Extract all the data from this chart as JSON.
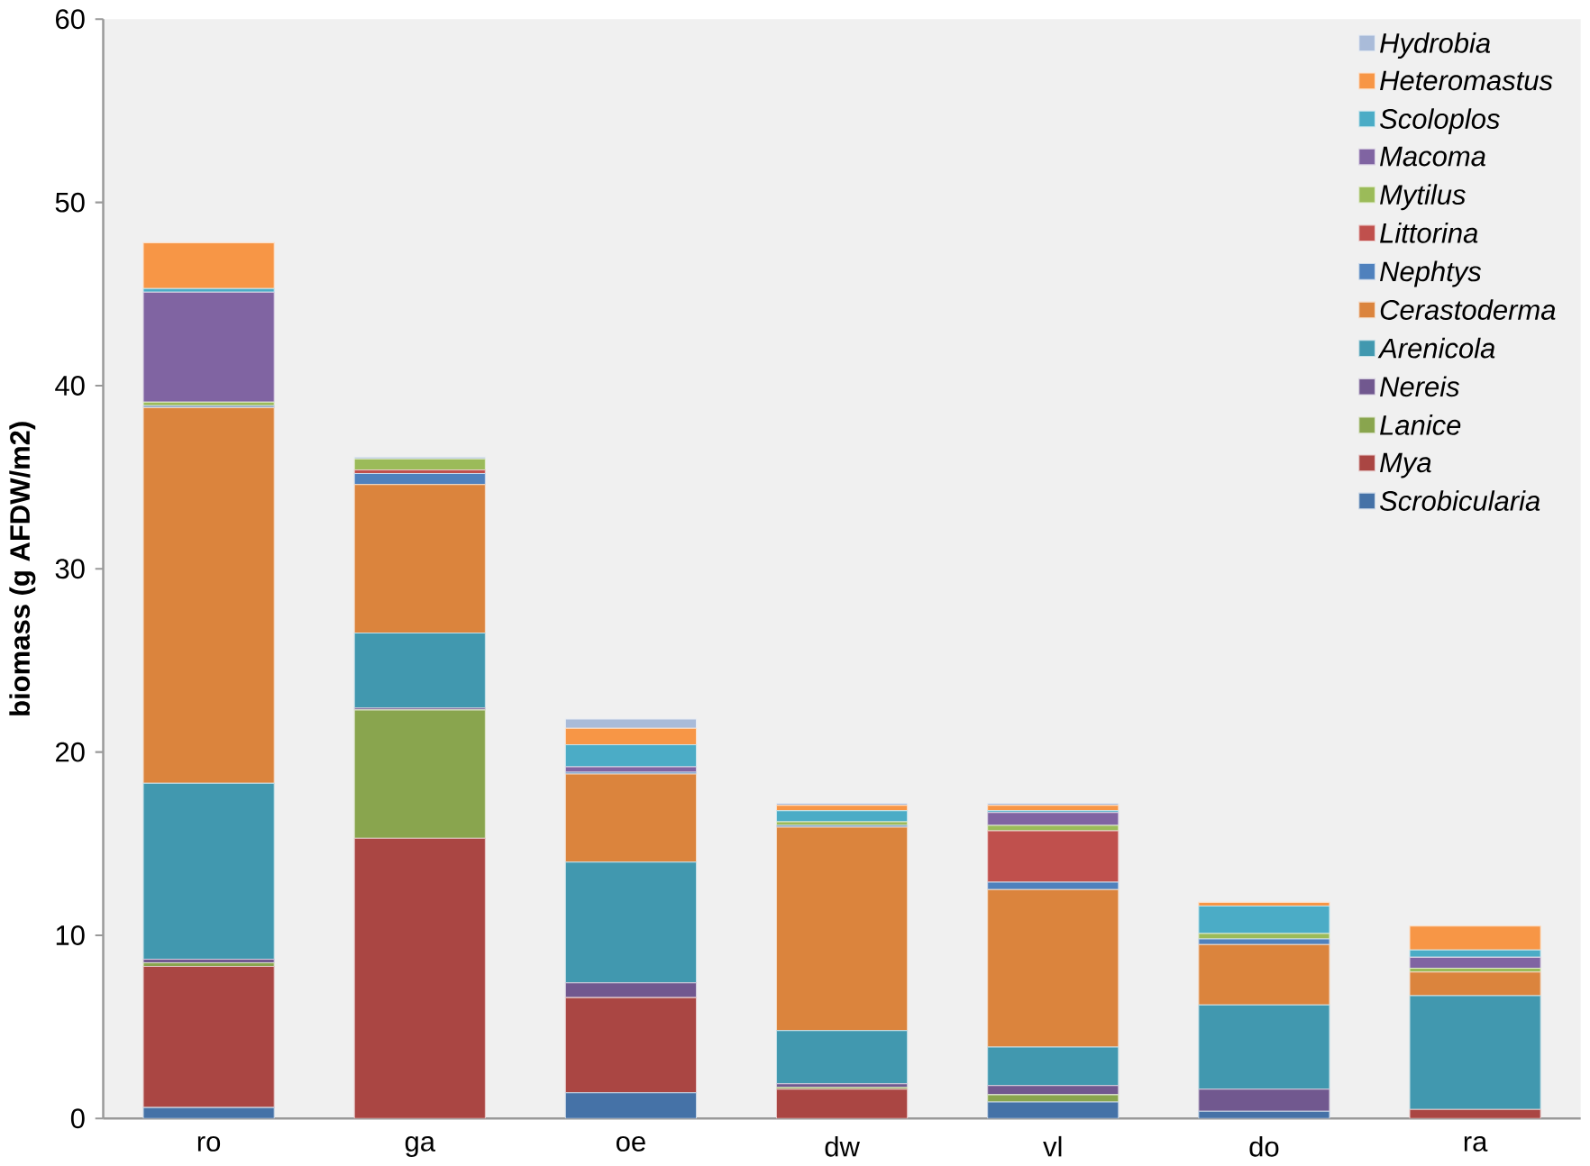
{
  "chart_data": {
    "type": "bar",
    "stacked": true,
    "ylabel": "biomass (g AFDW/m2)",
    "categories": [
      "ro",
      "ga",
      "oe",
      "dw",
      "vl",
      "do",
      "ra"
    ],
    "ylim": [
      0,
      60
    ],
    "yticks": [
      0,
      10,
      20,
      30,
      40,
      50,
      60
    ],
    "grid": false,
    "legend": "top right",
    "series": [
      {
        "name": "Scrobicularia",
        "color": "#4572a7",
        "values": [
          0.6,
          0,
          1.4,
          0,
          0.9,
          0.4,
          0
        ]
      },
      {
        "name": "Mya",
        "color": "#aa4643",
        "values": [
          7.7,
          15.3,
          5.2,
          1.6,
          0,
          0,
          0.5
        ]
      },
      {
        "name": "Lanice",
        "color": "#89a54e",
        "values": [
          0.2,
          7.0,
          0,
          0.1,
          0.4,
          0,
          0
        ]
      },
      {
        "name": "Nereis",
        "color": "#71588f",
        "values": [
          0.2,
          0.1,
          0.8,
          0.2,
          0.5,
          1.2,
          0
        ]
      },
      {
        "name": "Arenicola",
        "color": "#4198af",
        "values": [
          9.6,
          4.1,
          6.6,
          2.9,
          2.1,
          4.6,
          6.2
        ]
      },
      {
        "name": "Cerastoderma",
        "color": "#db843d",
        "values": [
          20.5,
          8.1,
          4.8,
          11.1,
          8.6,
          3.3,
          1.3
        ]
      },
      {
        "name": "Nephtys",
        "color": "#4f81bd",
        "values": [
          0.1,
          0.6,
          0.1,
          0.1,
          0.4,
          0.3,
          0
        ]
      },
      {
        "name": "Littorina",
        "color": "#c0504d",
        "values": [
          0,
          0.2,
          0,
          0,
          2.8,
          0,
          0
        ]
      },
      {
        "name": "Mytilus",
        "color": "#9bbb59",
        "values": [
          0.2,
          0.6,
          0,
          0.2,
          0.3,
          0.3,
          0.2
        ]
      },
      {
        "name": "Macoma",
        "color": "#8064a2",
        "values": [
          6.0,
          0,
          0.3,
          0,
          0.7,
          0,
          0.6
        ]
      },
      {
        "name": "Scoloplos",
        "color": "#4bacc6",
        "values": [
          0.2,
          0,
          1.2,
          0.6,
          0.1,
          1.5,
          0.4
        ]
      },
      {
        "name": "Heteromastus",
        "color": "#f79646",
        "values": [
          2.5,
          0,
          0.9,
          0.3,
          0.3,
          0.2,
          1.3
        ]
      },
      {
        "name": "Hydrobia",
        "color": "#a9bbd9",
        "values": [
          0,
          0.1,
          0.5,
          0.1,
          0.1,
          0,
          0
        ]
      }
    ]
  }
}
